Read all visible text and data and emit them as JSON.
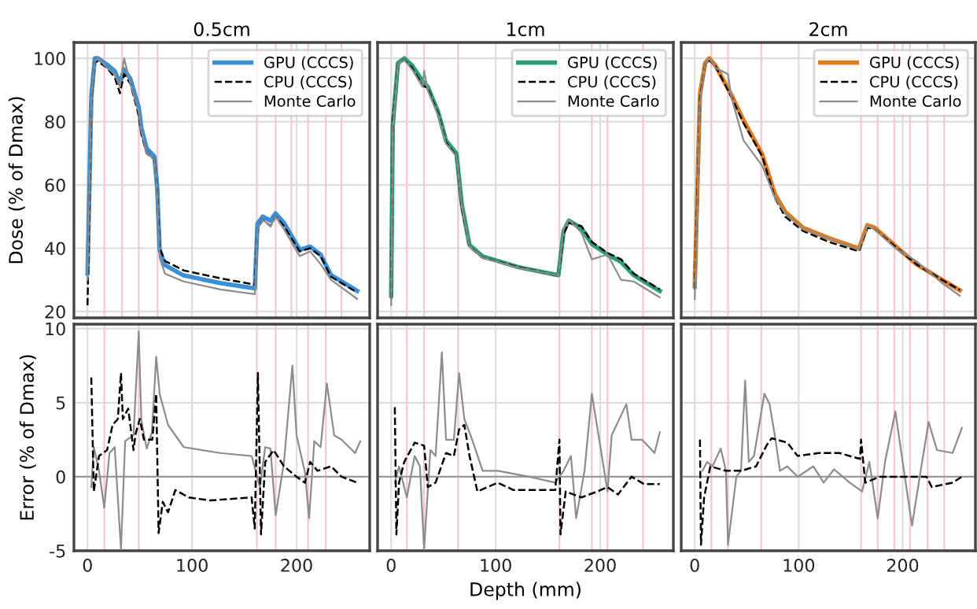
{
  "chart_data": [
    {
      "type": "line",
      "title": "0.5cm",
      "ylabel": "Dose (% of Dmax)",
      "xlim": [
        -13,
        270
      ],
      "xticks": [
        0,
        100,
        200
      ],
      "ylim": [
        18,
        105
      ],
      "yticks": [
        20,
        40,
        60,
        80,
        100
      ],
      "grid": true,
      "legend": "top right",
      "tick_labels": "y",
      "ref_lines": [
        {
          "axis": "x",
          "value": 16,
          "color": "#f7c6d0"
        },
        {
          "axis": "x",
          "value": 33,
          "color": "#f7c6d0"
        },
        {
          "axis": "x",
          "value": 49,
          "color": "#f7c6d0"
        },
        {
          "axis": "x",
          "value": 67,
          "color": "#f7c6d0"
        },
        {
          "axis": "x",
          "value": 162,
          "color": "#f7c6d0"
        },
        {
          "axis": "x",
          "value": 180,
          "color": "#f7c6d0"
        },
        {
          "axis": "x",
          "value": 195,
          "color": "#f7c6d0"
        },
        {
          "axis": "x",
          "value": 211,
          "color": "#f7c6d0"
        },
        {
          "axis": "x",
          "value": 228,
          "color": "#f7c6d0"
        },
        {
          "axis": "x",
          "value": 243,
          "color": "#f7c6d0"
        }
      ],
      "series": [
        {
          "name": "GPU (CCCS)",
          "color": "#3a8fd6",
          "line_style": "solid",
          "x": [
            0,
            3.6,
            7,
            10,
            18.7,
            26,
            31,
            35,
            41,
            49,
            51.5,
            56.6,
            64,
            66.7,
            69,
            74,
            92,
            127,
            160,
            162.6,
            167.7,
            175,
            180,
            188,
            203,
            213,
            223,
            233,
            258
          ],
          "values": [
            32,
            88,
            100,
            100,
            98,
            96,
            92,
            96.5,
            93.5,
            84.5,
            78,
            71.5,
            69,
            59,
            39.5,
            34.7,
            31.4,
            29,
            27.3,
            47.8,
            50,
            48.7,
            51,
            48,
            39.5,
            40.5,
            38,
            31.5,
            26.5
          ]
        },
        {
          "name": "CPU (CCCS)",
          "color": "#000000",
          "line_style": "dashed",
          "x": [
            0,
            3.6,
            7,
            10,
            18.7,
            26,
            31,
            35,
            41,
            49,
            51.5,
            56.6,
            64,
            66.7,
            69,
            74,
            92,
            127,
            160,
            162.6,
            167.7,
            175,
            180,
            188,
            203,
            213,
            223,
            233,
            258
          ],
          "values": [
            22,
            86,
            99,
            99,
            97,
            94,
            89,
            95,
            92,
            82,
            76,
            70,
            68,
            58,
            40,
            36,
            33,
            30.5,
            28.5,
            46,
            49,
            47,
            50,
            47,
            39,
            40,
            37.5,
            31,
            26
          ]
        },
        {
          "name": "Monte Carlo",
          "color": "#8c8c8c",
          "line_style": "solid",
          "x": [
            0,
            3.6,
            7,
            10,
            18.7,
            26,
            31,
            35,
            41,
            49,
            51.5,
            56.6,
            64,
            66.7,
            69,
            74,
            92,
            127,
            160,
            162.6,
            167.7,
            175,
            180,
            188,
            203,
            213,
            223,
            233,
            258
          ],
          "values": [
            30,
            87,
            99,
            100,
            97,
            95,
            91,
            100,
            92,
            83,
            77,
            70,
            68,
            57,
            37,
            32,
            29.5,
            27,
            25.5,
            46,
            49,
            47,
            50,
            46,
            37.5,
            39,
            35,
            30,
            24
          ]
        }
      ]
    },
    {
      "type": "line",
      "title": "1cm",
      "xlim": [
        -13,
        270
      ],
      "xticks": [
        0,
        100,
        200
      ],
      "ylim": [
        18,
        105
      ],
      "yticks": [
        20,
        40,
        60,
        80,
        100
      ],
      "grid": true,
      "legend": "top right",
      "tick_labels": false,
      "ref_lines": [
        {
          "axis": "x",
          "value": 15,
          "color": "#f7c6d0"
        },
        {
          "axis": "x",
          "value": 31.5,
          "color": "#f7c6d0"
        },
        {
          "axis": "x",
          "value": 64,
          "color": "#f7c6d0"
        },
        {
          "axis": "x",
          "value": 161,
          "color": "#f7c6d0"
        },
        {
          "axis": "x",
          "value": 192,
          "color": "#f7c6d0"
        },
        {
          "axis": "x",
          "value": 207,
          "color": "#f7c6d0"
        },
        {
          "axis": "x",
          "value": 241,
          "color": "#f7c6d0"
        }
      ],
      "series": [
        {
          "name": "GPU (CCCS)",
          "color": "#2a9d78",
          "line_style": "solid",
          "x": [
            0,
            1.5,
            6.5,
            12.5,
            20,
            30,
            35,
            45,
            52.5,
            62.5,
            67.5,
            75,
            87.5,
            122,
            160,
            165,
            170,
            182,
            192,
            207,
            220,
            232,
            257
          ],
          "values": [
            25,
            78.7,
            98.5,
            100,
            97.7,
            92.8,
            91,
            83,
            74,
            69.9,
            54,
            41,
            37.4,
            34,
            31.5,
            45.5,
            48.7,
            46.3,
            41.4,
            38,
            35.7,
            31.5,
            26.5
          ]
        },
        {
          "name": "CPU (CCCS)",
          "color": "#000000",
          "line_style": "dashed",
          "x": [
            0,
            1.5,
            6.5,
            12.5,
            20,
            30,
            35,
            45,
            52.5,
            62.5,
            67.5,
            75,
            87.5,
            122,
            160,
            165,
            170,
            182,
            192,
            207,
            220,
            232,
            257
          ],
          "values": [
            24,
            80,
            98,
            99.5,
            97,
            91.5,
            90.5,
            82.5,
            73.5,
            69,
            53,
            40.5,
            37,
            34,
            31.3,
            44.5,
            48,
            47,
            42,
            38.5,
            36.5,
            32,
            27
          ]
        },
        {
          "name": "Monte Carlo",
          "color": "#8c8c8c",
          "line_style": "solid",
          "x": [
            0,
            1.5,
            6.5,
            12.5,
            20,
            30,
            31.5,
            35,
            45,
            52.5,
            62.5,
            67.5,
            75,
            87.5,
            122,
            160,
            165,
            170,
            182,
            192,
            207,
            220,
            232,
            257
          ],
          "values": [
            22,
            78,
            98,
            99.5,
            96.5,
            91,
            96,
            90,
            82,
            73,
            69,
            53.5,
            40.5,
            37,
            33.8,
            31.4,
            46,
            49,
            45,
            36.5,
            38,
            30,
            29.5,
            24.5
          ]
        }
      ]
    },
    {
      "type": "line",
      "title": "2cm",
      "xlim": [
        -13,
        270
      ],
      "xticks": [
        0,
        100,
        200
      ],
      "ylim": [
        18,
        105
      ],
      "yticks": [
        20,
        40,
        60,
        80,
        100
      ],
      "grid": true,
      "legend": "top right",
      "tick_labels": false,
      "ref_lines": [
        {
          "axis": "x",
          "value": 16,
          "color": "#f7c6d0"
        },
        {
          "axis": "x",
          "value": 32,
          "color": "#f7c6d0"
        },
        {
          "axis": "x",
          "value": 64,
          "color": "#f7c6d0"
        },
        {
          "axis": "x",
          "value": 160,
          "color": "#f7c6d0"
        },
        {
          "axis": "x",
          "value": 176,
          "color": "#f7c6d0"
        },
        {
          "axis": "x",
          "value": 192,
          "color": "#f7c6d0"
        },
        {
          "axis": "x",
          "value": 207,
          "color": "#f7c6d0"
        },
        {
          "axis": "x",
          "value": 224,
          "color": "#f7c6d0"
        },
        {
          "axis": "x",
          "value": 240,
          "color": "#f7c6d0"
        }
      ],
      "series": [
        {
          "name": "GPU (CCCS)",
          "color": "#e07b1f",
          "line_style": "solid",
          "x": [
            0,
            5,
            10,
            14,
            20,
            35,
            47,
            65,
            77,
            87,
            104,
            129,
            158,
            166,
            173,
            193,
            213,
            238,
            255
          ],
          "values": [
            28,
            88.6,
            98.5,
            100,
            97.7,
            88.6,
            80.4,
            69.6,
            57.2,
            51.5,
            46.5,
            43.2,
            39.9,
            47.3,
            46.5,
            40.7,
            35,
            30,
            26.7
          ]
        },
        {
          "name": "CPU (CCCS)",
          "color": "#000000",
          "line_style": "dashed",
          "x": [
            0,
            5,
            10,
            14,
            20,
            35,
            47,
            65,
            77,
            87,
            104,
            129,
            158,
            166,
            173,
            193,
            213,
            238,
            255
          ],
          "values": [
            27,
            87,
            98,
            99.5,
            97.5,
            88,
            79.5,
            69,
            56,
            50,
            45.5,
            42,
            39,
            46.5,
            46,
            40.5,
            35,
            30,
            26.8
          ]
        },
        {
          "name": "Monte Carlo",
          "color": "#8c8c8c",
          "line_style": "solid",
          "x": [
            0,
            5,
            10,
            14,
            20,
            32,
            35,
            47,
            65,
            77,
            87,
            104,
            129,
            158,
            166,
            173,
            193,
            213,
            238,
            255
          ],
          "values": [
            24,
            86,
            98,
            100,
            97,
            95,
            88,
            74,
            66,
            56,
            51,
            46,
            43,
            39.5,
            47,
            46,
            40,
            36,
            29,
            25
          ]
        }
      ]
    },
    {
      "type": "line",
      "ylabel": "Error (% of Dmax)",
      "xlim": [
        -13,
        270
      ],
      "xticks": [
        0,
        100,
        200
      ],
      "ylim": [
        -5,
        10.3
      ],
      "yticks": [
        -5,
        0,
        5,
        10
      ],
      "grid": true,
      "ref_lines": [
        {
          "axis": "x",
          "value": 16,
          "color": "#f7c6d0"
        },
        {
          "axis": "x",
          "value": 49,
          "color": "#f7c6d0"
        },
        {
          "axis": "x",
          "value": 162,
          "color": "#f7c6d0"
        },
        {
          "axis": "x",
          "value": 180,
          "color": "#f7c6d0"
        },
        {
          "axis": "x",
          "value": 211,
          "color": "#f7c6d0"
        },
        {
          "axis": "x",
          "value": 228,
          "color": "#f7c6d0"
        },
        {
          "axis": "y",
          "value": 0,
          "color": "#9a9a9a"
        }
      ],
      "series": [
        {
          "color": "#8c8c8c",
          "line_style": "solid",
          "x": [
            3.6,
            6,
            11,
            16,
            21,
            26,
            32,
            36,
            44,
            49,
            51.5,
            56.6,
            61.6,
            65.7,
            69,
            77,
            92,
            127,
            157,
            165,
            170,
            175,
            180,
            188,
            196,
            200,
            208,
            212,
            217,
            223,
            229,
            236,
            243,
            256,
            261
          ],
          "values": [
            -0.7,
            2,
            0.4,
            -2.1,
            1.6,
            2,
            -4.9,
            2.4,
            2.8,
            9.8,
            3.8,
            1.9,
            3,
            8.1,
            5.6,
            3.5,
            2,
            1.6,
            1.4,
            -0.7,
            2,
            1.9,
            -2.6,
            1,
            7.5,
            2.8,
            0.3,
            -2.8,
            2.4,
            2,
            6.3,
            2.8,
            2.5,
            1.6,
            2.4
          ]
        },
        {
          "color": "#000000",
          "line_style": "dashed",
          "x": [
            3.6,
            6,
            11,
            18.7,
            24,
            29,
            32,
            33.8,
            38.9,
            44,
            46,
            50,
            54,
            59,
            62,
            65.7,
            68,
            72,
            77,
            84,
            97,
            117,
            157,
            160,
            163,
            166,
            170,
            178,
            188,
            200,
            208,
            213,
            220,
            233,
            243,
            258
          ],
          "values": [
            6.7,
            -1,
            1.4,
            1.8,
            3.5,
            3.9,
            7,
            3.9,
            4.6,
            1.8,
            2.9,
            3.9,
            2.5,
            2.5,
            2.5,
            5.6,
            -3.8,
            -1.7,
            -2.4,
            -0.9,
            -1.4,
            -1.6,
            -1.4,
            -3.5,
            7,
            -3.9,
            1,
            1.8,
            0.7,
            0,
            -0.4,
            1,
            0.4,
            0.7,
            0,
            -0.4
          ]
        }
      ]
    },
    {
      "type": "line",
      "xlabel": "Depth (mm)",
      "xlim": [
        -13,
        270
      ],
      "xticks": [
        0,
        100,
        200
      ],
      "ylim": [
        -5,
        10.3
      ],
      "yticks": [
        -5,
        0,
        5,
        10
      ],
      "grid": true,
      "tick_labels": "x",
      "ref_lines": [
        {
          "axis": "x",
          "value": 15,
          "color": "#f7c6d0"
        },
        {
          "axis": "x",
          "value": 31.5,
          "color": "#f7c6d0"
        },
        {
          "axis": "x",
          "value": 64,
          "color": "#f7c6d0"
        },
        {
          "axis": "x",
          "value": 161,
          "color": "#f7c6d0"
        },
        {
          "axis": "x",
          "value": 192,
          "color": "#f7c6d0"
        },
        {
          "axis": "x",
          "value": 207,
          "color": "#f7c6d0"
        },
        {
          "axis": "x",
          "value": 241,
          "color": "#f7c6d0"
        },
        {
          "axis": "y",
          "value": 0,
          "color": "#9a9a9a"
        }
      ],
      "series": [
        {
          "color": "#8c8c8c",
          "line_style": "solid",
          "x": [
            3.5,
            7.5,
            15,
            22.5,
            27.5,
            31.5,
            37.5,
            42.5,
            48.5,
            52.5,
            60,
            65,
            70,
            77.5,
            87.5,
            102,
            132,
            157,
            165,
            172,
            177,
            185,
            192,
            200,
            207,
            211,
            225,
            230,
            240,
            252,
            257
          ],
          "values": [
            -0.4,
            0.7,
            -1.4,
            1.4,
            0.7,
            -4.9,
            1.8,
            1.4,
            8.4,
            2.5,
            2.5,
            7,
            3.9,
            2.5,
            0.4,
            0.4,
            0,
            -0.4,
            0.4,
            1.4,
            -2.8,
            0.4,
            5.6,
            2.1,
            -1,
            2.8,
            4.9,
            2.5,
            2.5,
            1.6,
            3
          ]
        },
        {
          "color": "#000000",
          "line_style": "dashed",
          "x": [
            3.5,
            5,
            7.5,
            12.5,
            22.5,
            31.5,
            35,
            42.5,
            52.5,
            60,
            65,
            70,
            75,
            82.5,
            102,
            117,
            157,
            161,
            162,
            167,
            182,
            197,
            207,
            217,
            230,
            242,
            257
          ],
          "values": [
            4.7,
            -3.9,
            -0.4,
            1,
            2.3,
            2.1,
            -0.7,
            -0.4,
            1.6,
            1.4,
            3.2,
            3.5,
            1.4,
            -1,
            -0.4,
            -0.9,
            -0.9,
            2.5,
            -3.9,
            -1,
            -1.4,
            -1,
            -0.7,
            -1.2,
            0,
            -0.5,
            -0.5
          ]
        }
      ]
    },
    {
      "type": "line",
      "xlim": [
        -13,
        270
      ],
      "xticks": [
        0,
        100,
        200
      ],
      "ylim": [
        -5,
        10.3
      ],
      "yticks": [
        -5,
        0,
        5,
        10
      ],
      "grid": true,
      "tick_labels": "x",
      "ref_lines": [
        {
          "axis": "x",
          "value": 16,
          "color": "#f7c6d0"
        },
        {
          "axis": "x",
          "value": 32,
          "color": "#f7c6d0"
        },
        {
          "axis": "x",
          "value": 64,
          "color": "#f7c6d0"
        },
        {
          "axis": "x",
          "value": 160,
          "color": "#f7c6d0"
        },
        {
          "axis": "x",
          "value": 176,
          "color": "#f7c6d0"
        },
        {
          "axis": "x",
          "value": 192,
          "color": "#f7c6d0"
        },
        {
          "axis": "x",
          "value": 207,
          "color": "#f7c6d0"
        },
        {
          "axis": "x",
          "value": 224,
          "color": "#f7c6d0"
        },
        {
          "axis": "x",
          "value": 240,
          "color": "#f7c6d0"
        },
        {
          "axis": "y",
          "value": 0,
          "color": "#9a9a9a"
        }
      ],
      "series": [
        {
          "color": "#8c8c8c",
          "line_style": "solid",
          "x": [
            7.4,
            12,
            17,
            25,
            30,
            32,
            40,
            44.5,
            48.5,
            52,
            57,
            67,
            72,
            77,
            82,
            89,
            99,
            114,
            124,
            134,
            149,
            161,
            168,
            176,
            183,
            193,
            200,
            209,
            218,
            225,
            233,
            248,
            257
          ],
          "values": [
            0.4,
            1,
            0.7,
            1.9,
            0.4,
            -4.6,
            0,
            0.4,
            6.5,
            1,
            1.4,
            5.6,
            4.9,
            2.8,
            0.4,
            0.7,
            0,
            0.7,
            -0.4,
            0.5,
            -0.4,
            -1,
            1,
            -2.8,
            1,
            4.4,
            1,
            -3.3,
            0.7,
            3.7,
            1.8,
            1.6,
            3.3
          ]
        },
        {
          "color": "#000000",
          "line_style": "dashed",
          "x": [
            5,
            6,
            9,
            15,
            30,
            44.5,
            59,
            69,
            74,
            89,
            99,
            119,
            139,
            159,
            160,
            164,
            178,
            208,
            223,
            228,
            248,
            257
          ],
          "values": [
            2.5,
            -4.6,
            -1.4,
            0.7,
            0.4,
            0.4,
            0.7,
            2.1,
            2.6,
            2.3,
            1.4,
            1.6,
            1.6,
            1.2,
            2.5,
            -0.4,
            0,
            0,
            0,
            -0.7,
            -0.4,
            0
          ]
        }
      ]
    }
  ]
}
